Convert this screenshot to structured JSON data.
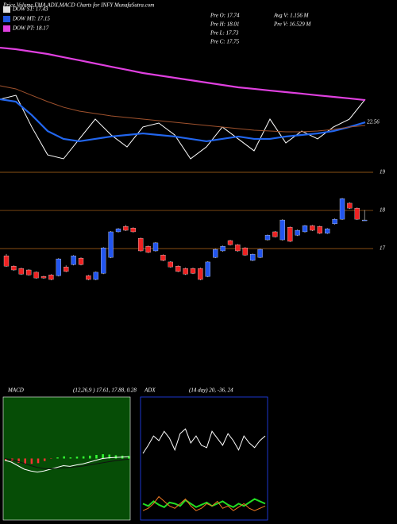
{
  "header": {
    "title": "Price,Volume,EMA,ADX,MACD Charts for INFY MunafaSutra.com",
    "legend": [
      {
        "text": "DOW ST: 17.43",
        "color": "#e0e0e0"
      },
      {
        "text": "DOW MT: 17.15",
        "color": "#2255dd"
      },
      {
        "text": "DOW PT: 18.17",
        "color": "#e040e0"
      }
    ],
    "stats": [
      "Pre  O: 17.74",
      "Pre  H: 18.01",
      "Pre  L: 17.73",
      "Pre  C: 17.75",
      "Avg V: 1.156  M",
      "Pre  V: 16.529 M"
    ]
  },
  "chart_data": [
    {
      "type": "line",
      "ylim": [
        18.5,
        29.5
      ],
      "series": [
        {
          "color": "#ffffff",
          "values": [
            24.5,
            24.83,
            22.17,
            19.83,
            19.5,
            21.17,
            22.83,
            21.5,
            20.5,
            22.17,
            22.5,
            21.5,
            19.5,
            20.5,
            22.17,
            21.17,
            20.17,
            22.83,
            20.83,
            21.83,
            21.17,
            22.17,
            22.83,
            24.5
          ]
        },
        {
          "color": "#2266ee",
          "values": [
            24.5,
            24.3,
            23.17,
            21.83,
            21.17,
            20.97,
            21.17,
            21.37,
            21.5,
            21.63,
            21.5,
            21.37,
            21.17,
            20.97,
            21.17,
            21.37,
            21.17,
            21.17,
            21.37,
            21.5,
            21.63,
            21.83,
            22.17,
            22.56
          ]
        },
        {
          "color": "#a0522d",
          "values": [
            25.63,
            25.37,
            24.83,
            24.3,
            23.83,
            23.5,
            23.3,
            23.1,
            22.97,
            22.83,
            22.7,
            22.57,
            22.43,
            22.3,
            22.17,
            22.03,
            21.9,
            21.83,
            21.77,
            21.77,
            21.83,
            21.97,
            22.17,
            22.3
          ]
        },
        {
          "color": "#e040e0",
          "values": [
            28.83,
            28.7,
            28.5,
            28.3,
            28.03,
            27.77,
            27.5,
            27.23,
            26.97,
            26.7,
            26.5,
            26.3,
            26.1,
            25.9,
            25.7,
            25.5,
            25.37,
            25.23,
            25.1,
            24.97,
            24.83,
            24.7,
            24.57,
            24.43
          ]
        }
      ]
    },
    {
      "type": "candlestick",
      "ylim": [
        15.92,
        19.25
      ],
      "yticks": [
        17,
        18,
        19
      ],
      "grid": true,
      "up_color": "#2255ee",
      "down_color": "#ee2222",
      "open": [
        16.81,
        16.54,
        16.48,
        16.44,
        16.38,
        16.27,
        16.31,
        16.29,
        16.52,
        16.58,
        16.75,
        16.29,
        16.19,
        16.35,
        16.77,
        17.44,
        17.58,
        17.54,
        17.27,
        17.06,
        16.94,
        16.83,
        16.65,
        16.54,
        16.48,
        16.48,
        16.48,
        16.27,
        16.77,
        16.94,
        17.21,
        17.1,
        17.02,
        16.69,
        16.77,
        17.23,
        17.44,
        17.23,
        17.56,
        17.35,
        17.44,
        17.6,
        17.58,
        17.4,
        17.65,
        17.77,
        18.19,
        18.06,
        17.74
      ],
      "high": [
        16.86,
        16.56,
        16.5,
        16.46,
        16.4,
        16.29,
        16.33,
        16.75,
        16.56,
        16.83,
        16.77,
        16.31,
        16.4,
        17.04,
        17.46,
        17.54,
        17.62,
        17.56,
        17.29,
        17.08,
        17.17,
        16.85,
        16.67,
        16.56,
        16.5,
        16.5,
        16.5,
        16.67,
        17.0,
        17.08,
        17.23,
        17.12,
        17.04,
        16.87,
        17.0,
        17.37,
        17.46,
        17.77,
        17.58,
        17.5,
        17.62,
        17.62,
        17.6,
        17.54,
        17.79,
        18.33,
        18.21,
        18.08,
        18.01
      ],
      "low": [
        16.52,
        16.42,
        16.31,
        16.29,
        16.21,
        16.21,
        16.17,
        16.27,
        16.38,
        16.56,
        16.56,
        16.17,
        16.17,
        16.33,
        16.75,
        17.42,
        17.46,
        17.42,
        16.92,
        16.88,
        16.92,
        16.67,
        16.5,
        16.38,
        16.31,
        16.33,
        16.17,
        16.25,
        16.75,
        16.92,
        17.08,
        16.92,
        16.81,
        16.67,
        16.75,
        17.21,
        17.29,
        17.21,
        17.17,
        17.33,
        17.42,
        17.46,
        17.38,
        17.38,
        17.63,
        17.75,
        18.04,
        17.75,
        17.73
      ],
      "close": [
        16.54,
        16.44,
        16.33,
        16.31,
        16.23,
        16.23,
        16.19,
        16.73,
        16.4,
        16.81,
        16.58,
        16.19,
        16.38,
        17.02,
        17.44,
        17.52,
        17.48,
        17.44,
        16.94,
        16.9,
        17.15,
        16.69,
        16.52,
        16.4,
        16.33,
        16.35,
        16.19,
        16.65,
        16.98,
        17.06,
        17.1,
        16.94,
        16.83,
        16.85,
        16.98,
        17.35,
        17.31,
        17.75,
        17.19,
        17.48,
        17.6,
        17.48,
        17.4,
        17.52,
        17.77,
        18.31,
        18.06,
        17.77,
        17.75
      ]
    },
    {
      "type": "macd",
      "title": "MACD",
      "subtitle": "(12,26,9 ) 17.61, 17.88, 0.28",
      "ylim": [
        -1.5,
        1.5
      ],
      "series": [
        {
          "color": "#ffffff",
          "values": [
            -0.05,
            -0.1,
            -0.2,
            -0.3,
            -0.35,
            -0.38,
            -0.35,
            -0.3,
            -0.25,
            -0.2,
            -0.22,
            -0.18,
            -0.15,
            -0.1,
            -0.05,
            0,
            0.02,
            0.03,
            0.04,
            0.05
          ]
        },
        {
          "color": "#111111",
          "values": [
            0,
            -0.03,
            -0.08,
            -0.14,
            -0.2,
            -0.25,
            -0.28,
            -0.29,
            -0.28,
            -0.26,
            -0.25,
            -0.23,
            -0.21,
            -0.18,
            -0.15,
            -0.12,
            -0.09,
            -0.06,
            -0.04,
            -0.02
          ]
        }
      ],
      "histogram": [
        -0.05,
        -0.07,
        -0.12,
        -0.16,
        -0.15,
        -0.13,
        -0.07,
        -0.01,
        0.03,
        0.06,
        0.03,
        0.05,
        0.06,
        0.08,
        0.1,
        0.12,
        0.11,
        0.09,
        0.08,
        0.07
      ]
    },
    {
      "type": "adx",
      "title": "ADX",
      "subtitle": "(14  day) 20, -36, 24",
      "ylim": [
        0,
        100
      ],
      "series": [
        {
          "color": "#ffffff",
          "values": [
            55,
            62,
            70,
            66,
            74,
            68,
            58,
            72,
            76,
            64,
            70,
            62,
            60,
            74,
            68,
            62,
            72,
            66,
            58,
            70,
            64,
            60,
            66,
            70
          ]
        },
        {
          "color": "#22dd22",
          "values": [
            12,
            10,
            14,
            11,
            9,
            13,
            12,
            10,
            15,
            12,
            9,
            11,
            13,
            10,
            12,
            14,
            11,
            9,
            12,
            10,
            13,
            16,
            14,
            12
          ]
        },
        {
          "color": "#ee7722",
          "values": [
            6,
            8,
            12,
            18,
            14,
            10,
            8,
            12,
            16,
            10,
            6,
            8,
            12,
            10,
            14,
            8,
            10,
            6,
            9,
            12,
            8,
            6,
            8,
            10
          ]
        }
      ]
    }
  ]
}
